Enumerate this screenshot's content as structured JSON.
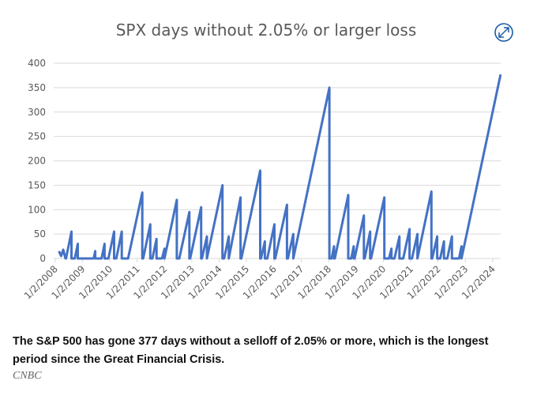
{
  "chart_data": {
    "type": "line",
    "title": "SPX days without 2.05% or larger loss",
    "color": "#4472c4",
    "grid": true,
    "x": [
      2008.14,
      2008.22,
      2008.3,
      2008.38,
      2008.4,
      2008.6,
      2008.6,
      2008.72,
      2008.83,
      2008.83,
      2009.41,
      2009.47,
      2009.47,
      2009.7,
      2009.81,
      2009.81,
      2009.95,
      2010.16,
      2010.16,
      2010.24,
      2010.44,
      2010.44,
      2010.67,
      2011.19,
      2011.19,
      2011.22,
      2011.48,
      2011.48,
      2011.56,
      2011.71,
      2011.71,
      2011.91,
      2012.0,
      2012.0,
      2012.45,
      2012.45,
      2012.54,
      2012.91,
      2012.91,
      2012.94,
      2013.34,
      2013.34,
      2013.37,
      2013.55,
      2013.55,
      2014.12,
      2014.12,
      2014.18,
      2014.35,
      2014.35,
      2014.78,
      2014.78,
      2014.81,
      2015.5,
      2015.5,
      2015.53,
      2015.67,
      2015.67,
      2015.76,
      2016.02,
      2016.02,
      2016.05,
      2016.48,
      2016.48,
      2016.51,
      2016.71,
      2016.71,
      2018.03,
      2018.03,
      2018.11,
      2018.2,
      2018.2,
      2018.23,
      2018.72,
      2018.72,
      2018.83,
      2018.92,
      2018.92,
      2018.95,
      2019.29,
      2019.29,
      2019.32,
      2019.52,
      2019.52,
      2019.55,
      2020.04,
      2020.04,
      2020.21,
      2020.3,
      2020.3,
      2020.41,
      2020.59,
      2020.59,
      2020.73,
      2020.96,
      2020.96,
      2021.05,
      2021.25,
      2021.25,
      2021.76,
      2021.76,
      2021.79,
      2021.97,
      2021.97,
      2022.08,
      2022.22,
      2022.22,
      2022.34,
      2022.51,
      2022.51,
      2022.77,
      2022.86,
      2022.86,
      2024.29
    ],
    "values": [
      15,
      5,
      18,
      0,
      0,
      55,
      0,
      0,
      30,
      0,
      0,
      15,
      0,
      0,
      30,
      0,
      0,
      55,
      0,
      0,
      55,
      0,
      0,
      135,
      0,
      0,
      70,
      0,
      0,
      40,
      0,
      0,
      20,
      0,
      120,
      0,
      0,
      95,
      0,
      0,
      105,
      0,
      0,
      45,
      0,
      150,
      0,
      0,
      45,
      0,
      125,
      0,
      0,
      180,
      0,
      0,
      35,
      0,
      0,
      70,
      0,
      0,
      110,
      0,
      0,
      50,
      0,
      350,
      0,
      0,
      25,
      0,
      0,
      130,
      0,
      0,
      25,
      0,
      0,
      88,
      0,
      0,
      55,
      0,
      0,
      125,
      0,
      0,
      20,
      0,
      0,
      45,
      0,
      0,
      60,
      0,
      0,
      50,
      0,
      137,
      0,
      0,
      45,
      0,
      0,
      35,
      0,
      0,
      45,
      0,
      0,
      25,
      0,
      377
    ],
    "xlim": [
      2007.95,
      2024.35
    ],
    "xticks": [
      {
        "value": 2008,
        "label": "1/2/2008"
      },
      {
        "value": 2009,
        "label": "1/2/2009"
      },
      {
        "value": 2010,
        "label": "1/2/2010"
      },
      {
        "value": 2011,
        "label": "1/2/2011"
      },
      {
        "value": 2012,
        "label": "1/2/2012"
      },
      {
        "value": 2013,
        "label": "1/2/2013"
      },
      {
        "value": 2014,
        "label": "1/2/2014"
      },
      {
        "value": 2015,
        "label": "1/2/2015"
      },
      {
        "value": 2016,
        "label": "1/2/2016"
      },
      {
        "value": 2017,
        "label": "1/2/2017"
      },
      {
        "value": 2018,
        "label": "1/2/2018"
      },
      {
        "value": 2019,
        "label": "1/2/2019"
      },
      {
        "value": 2020,
        "label": "1/2/2020"
      },
      {
        "value": 2021,
        "label": "1/2/2021"
      },
      {
        "value": 2022,
        "label": "1/2/2022"
      },
      {
        "value": 2023,
        "label": "1/2/2023"
      },
      {
        "value": 2024,
        "label": "1/2/2024"
      }
    ],
    "ylim": [
      0,
      400
    ],
    "yticks": [
      0,
      50,
      100,
      150,
      200,
      250,
      300,
      350,
      400
    ]
  },
  "caption": "The S&P 500 has gone 377 days without a selloff of 2.05% or more, which is the longest period since the Great Financial Crisis.",
  "source": "CNBC"
}
